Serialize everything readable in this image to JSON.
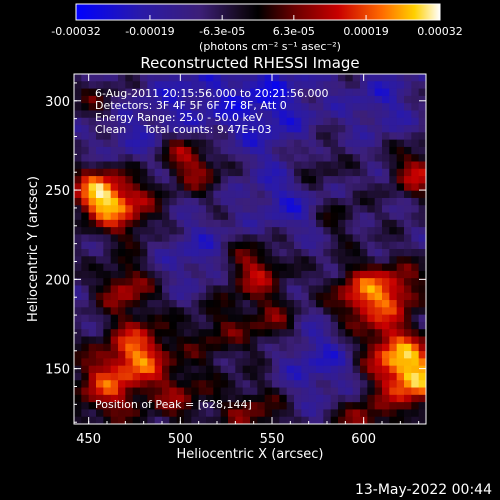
{
  "chart_data": {
    "type": "heatmap",
    "title": "Reconstructed RHESSI Image",
    "xlabel": "Heliocentric X (arcsec)",
    "ylabel": "Heliocentric Y (arcsec)",
    "xlim": [
      442,
      634
    ],
    "ylim": [
      119,
      315
    ],
    "x_ticks": [
      450,
      500,
      550,
      600
    ],
    "y_ticks": [
      150,
      200,
      250,
      300
    ],
    "colorbar": {
      "range": [
        -0.00032,
        0.00032
      ],
      "tick_values": [
        -0.00032,
        -0.00019,
        -6.3e-05,
        6.3e-05,
        0.00019,
        0.00032
      ],
      "tick_labels": [
        "-0.00032",
        "-0.00019",
        "-6.3e-05",
        "6.3e-05",
        "0.00019",
        "0.00032"
      ],
      "units_label": "(photons cm⁻² s⁻¹ asec⁻²)"
    },
    "annotations": [
      "6-Aug-2011 20:15:56.000 to 20:21:56.000",
      "Detectors: 3F 4F 5F 6F 7F 8F, Att 0",
      "Energy Range: 25.0 - 50.0 keV",
      "Clean     Total counts: 9.47E+03"
    ],
    "peak_label": "Position of Peak = [628,144]",
    "peak_position": [
      628,
      144
    ],
    "total_counts": 9470,
    "grid_n": 48,
    "hotspots": [
      {
        "x": 455,
        "y": 248,
        "amp": 0.0003,
        "s": 10
      },
      {
        "x": 470,
        "y": 240,
        "amp": 0.00022,
        "s": 12
      },
      {
        "x": 478,
        "y": 160,
        "amp": 0.00026,
        "s": 12
      },
      {
        "x": 460,
        "y": 140,
        "amp": 0.00022,
        "s": 14
      },
      {
        "x": 470,
        "y": 195,
        "amp": 0.0002,
        "s": 10
      },
      {
        "x": 500,
        "y": 135,
        "amp": 0.00014,
        "s": 12
      },
      {
        "x": 520,
        "y": 170,
        "amp": 0.00012,
        "s": 12
      },
      {
        "x": 510,
        "y": 262,
        "amp": 0.00016,
        "s": 10
      },
      {
        "x": 500,
        "y": 272,
        "amp": 0.00012,
        "s": 8
      },
      {
        "x": 540,
        "y": 205,
        "amp": 0.0002,
        "s": 12
      },
      {
        "x": 550,
        "y": 175,
        "amp": 0.00014,
        "s": 10
      },
      {
        "x": 572,
        "y": 262,
        "amp": 0.00012,
        "s": 10
      },
      {
        "x": 585,
        "y": 235,
        "amp": 0.0001,
        "s": 9
      },
      {
        "x": 600,
        "y": 190,
        "amp": 0.00028,
        "s": 12
      },
      {
        "x": 620,
        "y": 195,
        "amp": 0.00018,
        "s": 10
      },
      {
        "x": 628,
        "y": 144,
        "amp": 0.00032,
        "s": 12
      },
      {
        "x": 615,
        "y": 160,
        "amp": 0.00024,
        "s": 12
      },
      {
        "x": 600,
        "y": 120,
        "amp": 0.00018,
        "s": 10
      },
      {
        "x": 630,
        "y": 260,
        "amp": 0.0002,
        "s": 10
      },
      {
        "x": 540,
        "y": 125,
        "amp": 0.00015,
        "s": 12
      },
      {
        "x": 455,
        "y": 300,
        "amp": 0.0001,
        "s": 8
      }
    ],
    "coldspots": [
      {
        "x": 545,
        "y": 300,
        "amp": -0.00016,
        "s": 20
      },
      {
        "x": 500,
        "y": 300,
        "amp": -0.0001,
        "s": 16
      },
      {
        "x": 560,
        "y": 245,
        "amp": -0.00012,
        "s": 16
      },
      {
        "x": 510,
        "y": 215,
        "amp": -0.0001,
        "s": 14
      },
      {
        "x": 575,
        "y": 155,
        "amp": -0.00012,
        "s": 16
      },
      {
        "x": 470,
        "y": 280,
        "amp": -8e-05,
        "s": 12
      },
      {
        "x": 610,
        "y": 300,
        "amp": -0.0001,
        "s": 14
      }
    ]
  },
  "timestamp": "13-May-2022 00:44"
}
